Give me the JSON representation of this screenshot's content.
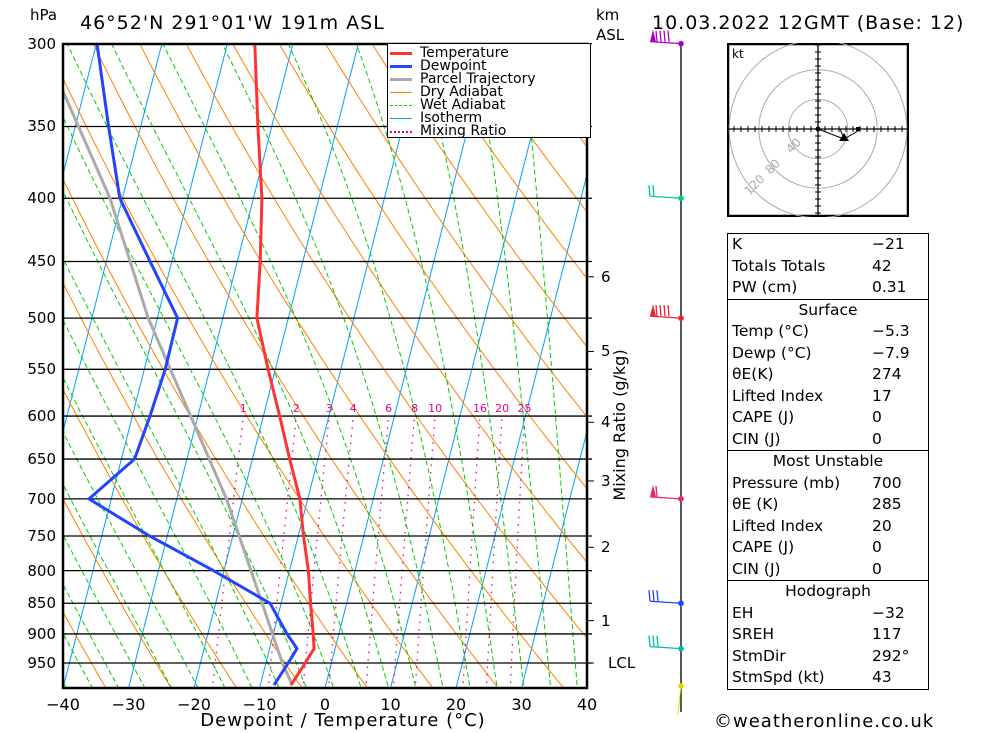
{
  "header": {
    "unit_pressure": "hPa",
    "location": "46°52'N  291°01'W  191m  ASL",
    "unit_height_1": "km",
    "unit_height_2": "ASL",
    "datetime": "10.03.2022  12GMT  (Base: 12)"
  },
  "legend": [
    {
      "label": "Temperature",
      "color": "#ff3333",
      "style": "solid-thick"
    },
    {
      "label": "Dewpoint",
      "color": "#2244ff",
      "style": "solid-thick"
    },
    {
      "label": "Parcel Trajectory",
      "color": "#aaaaaa",
      "style": "solid-thick"
    },
    {
      "label": "Dry Adiabat",
      "color": "#ff8000",
      "style": "solid"
    },
    {
      "label": "Wet Adiabat",
      "color": "#00cc00",
      "style": "dashed"
    },
    {
      "label": "Isotherm",
      "color": "#00a0ff",
      "style": "solid"
    },
    {
      "label": "Mixing Ratio",
      "color": "#ee0088",
      "style": "dotted"
    }
  ],
  "chart_data": {
    "type": "line",
    "title": "Skew-T log-P sounding",
    "xlabel": "Dewpoint / Temperature (°C)",
    "ylabel": "hPa",
    "xlim": [
      -40,
      40
    ],
    "ylim": [
      1000,
      300
    ],
    "x_ticks": [
      "−40",
      "−30",
      "−20",
      "−10",
      "0",
      "10",
      "20",
      "30",
      "40"
    ],
    "x_tick_values": [
      -40,
      -30,
      -20,
      -10,
      0,
      10,
      20,
      30,
      40
    ],
    "y_ticks": [
      300,
      350,
      400,
      450,
      500,
      550,
      600,
      650,
      700,
      750,
      800,
      850,
      900,
      950
    ],
    "secondary_axis": {
      "label": "Mixing Ratio (g/kg)",
      "height_km_ticks": [
        {
          "label": "6",
          "pressure": 463
        },
        {
          "label": "5",
          "pressure": 532
        },
        {
          "label": "4",
          "pressure": 607
        },
        {
          "label": "3",
          "pressure": 677
        },
        {
          "label": "2",
          "pressure": 766
        },
        {
          "label": "1",
          "pressure": 878
        },
        {
          "label": "LCL",
          "pressure": 950
        }
      ]
    },
    "mixing_ratio_labels": [
      "1",
      "2",
      "3",
      "4",
      "6",
      "8",
      "10",
      "16",
      "20",
      "25"
    ],
    "mixing_ratio_values": [
      1,
      2,
      3,
      4,
      6,
      8,
      10,
      16,
      20,
      25
    ],
    "series": [
      {
        "name": "Temperature",
        "color": "#ff3333",
        "pressure": [
          990,
          950,
          925,
          900,
          850,
          800,
          750,
          700,
          650,
          600,
          550,
          500,
          450,
          400,
          350,
          300
        ],
        "values": [
          -5.3,
          -4.0,
          -3.2,
          -3.9,
          -5.5,
          -7.1,
          -9.2,
          -11.2,
          -14.3,
          -17.5,
          -21.1,
          -24.8,
          -26.5,
          -28.7,
          -32.1,
          -35.8
        ]
      },
      {
        "name": "Dewpoint",
        "color": "#2244ff",
        "pressure": [
          990,
          950,
          925,
          900,
          850,
          800,
          750,
          700,
          650,
          600,
          550,
          500,
          450,
          400,
          350,
          300
        ],
        "values": [
          -7.9,
          -6.6,
          -5.8,
          -7.9,
          -11.7,
          -21.6,
          -32.7,
          -43.4,
          -38.0,
          -37.3,
          -36.8,
          -36.9,
          -43.3,
          -50.4,
          -54.9,
          -59.9
        ]
      },
      {
        "name": "Parcel Trajectory",
        "color": "#aaaaaa",
        "pressure": [
          990,
          950,
          850,
          700,
          500,
          400,
          320
        ],
        "values": [
          -5.1,
          -7.5,
          -12.9,
          -22.4,
          -41.4,
          -51.9,
          -64.6
        ]
      }
    ],
    "wind_levels": [
      {
        "pressure": 300,
        "color": "#aa00cc",
        "barbs": 4,
        "flag": true
      },
      {
        "pressure": 400,
        "color": "#00cc88",
        "barbs": 2,
        "flag": false
      },
      {
        "pressure": 500,
        "color": "#ee2233",
        "barbs": 4,
        "flag": true
      },
      {
        "pressure": 700,
        "color": "#ee2266",
        "barbs": 1,
        "flag": true
      },
      {
        "pressure": 850,
        "color": "#2244ff",
        "barbs": 3,
        "flag": false
      },
      {
        "pressure": 925,
        "color": "#00bbaa",
        "barbs": 3,
        "flag": false
      },
      {
        "pressure": 1000,
        "color": "#dddd00",
        "barbs": 0,
        "flag": false
      }
    ],
    "hodograph": {
      "unit": "kt",
      "ring_labels": [
        "40",
        "80",
        "120"
      ],
      "ring_values": [
        40,
        80,
        120
      ],
      "storm_motion_dir": 292,
      "storm_motion_kt": 43
    }
  },
  "table": {
    "indices": [
      {
        "label": "K",
        "value": "−21"
      },
      {
        "label": "Totals Totals",
        "value": "42"
      },
      {
        "label": "PW (cm)",
        "value": "0.31"
      }
    ],
    "surface": {
      "title": "Surface",
      "rows": [
        {
          "label": "Temp (°C)",
          "value": "−5.3"
        },
        {
          "label": "Dewp (°C)",
          "value": "−7.9"
        },
        {
          "label": "θE(K)",
          "value": "274"
        },
        {
          "label": "Lifted Index",
          "value": "17"
        },
        {
          "label": "CAPE (J)",
          "value": "0"
        },
        {
          "label": "CIN (J)",
          "value": "0"
        }
      ]
    },
    "most_unstable": {
      "title": "Most Unstable",
      "rows": [
        {
          "label": "Pressure (mb)",
          "value": "700"
        },
        {
          "label": "θE (K)",
          "value": "285"
        },
        {
          "label": "Lifted Index",
          "value": "20"
        },
        {
          "label": "CAPE (J)",
          "value": "0"
        },
        {
          "label": "CIN (J)",
          "value": "0"
        }
      ]
    },
    "hodograph": {
      "title": "Hodograph",
      "rows": [
        {
          "label": "EH",
          "value": "−32"
        },
        {
          "label": "SREH",
          "value": "117"
        },
        {
          "label": "StmDir",
          "value": "292°"
        },
        {
          "label": "StmSpd (kt)",
          "value": "43"
        }
      ]
    }
  },
  "footer": {
    "copyright": "©weatheronline.co.uk"
  }
}
